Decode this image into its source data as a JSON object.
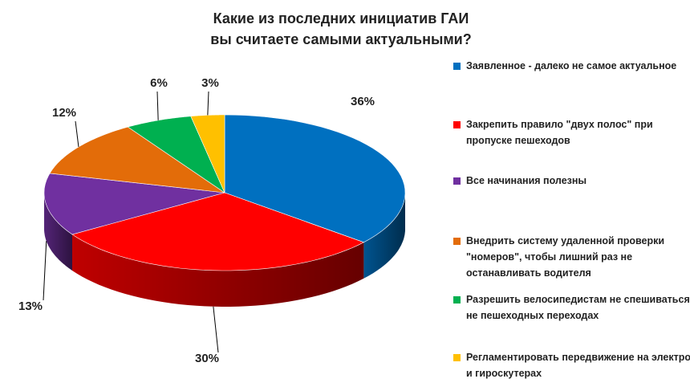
{
  "chart_data": {
    "type": "pie3d",
    "title": "Какие из последних инициатив ГАИ вы считаете самыми актуальными?",
    "categories": [
      "Заявленное - далеко не самое актуальное",
      "Закрепить правило \"двух полос\" при пропуске пешеходов",
      "Все начинания полезны",
      "Внедрить систему удаленной проверки \"номеров\", чтобы лишний раз не останавливать водителя",
      "Разрешить велосипедистам не спешиваться не пешеходных переходах",
      "Регламентировать передвижение на электро- и гироскутерах"
    ],
    "values": [
      36,
      30,
      13,
      12,
      6,
      3
    ],
    "value_labels": [
      "36%",
      "30%",
      "13%",
      "12%",
      "6%",
      "3%"
    ],
    "colors": [
      "#0070c0",
      "#ff0000",
      "#7030a0",
      "#e36c09",
      "#00b050",
      "#ffc000"
    ],
    "legend": "right"
  }
}
